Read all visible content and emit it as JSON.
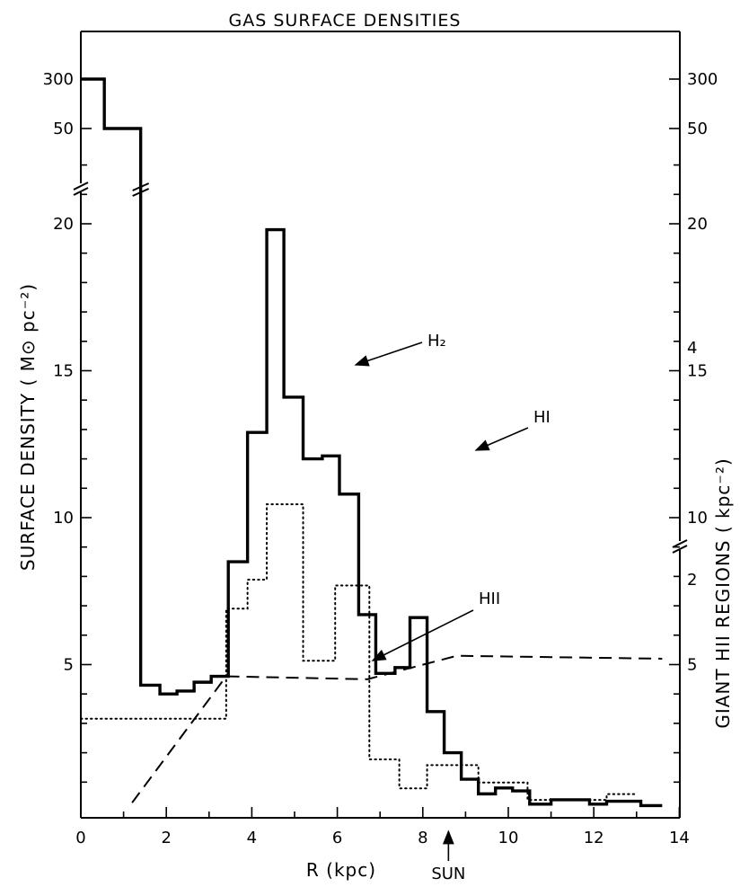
{
  "chart_data": {
    "type": "line",
    "title": "GAS SURFACE DENSITIES",
    "xlabel": "R (kpc)",
    "ylabel": "SURFACE DENSITY ( M⊙ pc⁻²)",
    "ylabel_right": "GIANT HII REGIONS ( kpc⁻²)",
    "xlim": [
      0,
      14
    ],
    "ylim": [
      0,
      23
    ],
    "y_break_upper_ticks": [
      "50",
      "300"
    ],
    "x_ticks": [
      "0",
      "2",
      "4",
      "6",
      "8",
      "10",
      "12",
      "14"
    ],
    "y_ticks": [
      "5",
      "10",
      "15",
      "20"
    ],
    "y_right_ticks": [
      "2",
      "4"
    ],
    "sun_marker": {
      "label": "SUN",
      "x": 8.6
    },
    "series": [
      {
        "name": "H₂",
        "style": "solid",
        "steps": [
          {
            "x0": 0.0,
            "x1": 0.55,
            "y": 300,
            "axis_display": "upper"
          },
          {
            "x0": 0.55,
            "x1": 1.4,
            "y": 50,
            "axis_display": "upper"
          },
          {
            "x0": 1.4,
            "x1": 1.85,
            "y": 4.3
          },
          {
            "x0": 1.85,
            "x1": 2.25,
            "y": 4.0
          },
          {
            "x0": 2.25,
            "x1": 2.65,
            "y": 4.1
          },
          {
            "x0": 2.65,
            "x1": 3.05,
            "y": 4.4
          },
          {
            "x0": 3.05,
            "x1": 3.45,
            "y": 4.6
          },
          {
            "x0": 3.45,
            "x1": 3.9,
            "y": 8.5
          },
          {
            "x0": 3.9,
            "x1": 4.35,
            "y": 12.9
          },
          {
            "x0": 4.35,
            "x1": 4.75,
            "y": 19.8
          },
          {
            "x0": 4.75,
            "x1": 5.2,
            "y": 14.1
          },
          {
            "x0": 5.2,
            "x1": 5.65,
            "y": 12.0
          },
          {
            "x0": 5.65,
            "x1": 6.05,
            "y": 12.1
          },
          {
            "x0": 6.05,
            "x1": 6.5,
            "y": 10.8
          },
          {
            "x0": 6.5,
            "x1": 6.9,
            "y": 6.7
          },
          {
            "x0": 6.9,
            "x1": 7.35,
            "y": 4.7
          },
          {
            "x0": 7.35,
            "x1": 7.7,
            "y": 4.9
          },
          {
            "x0": 7.7,
            "x1": 8.1,
            "y": 6.6
          },
          {
            "x0": 8.1,
            "x1": 8.5,
            "y": 3.4
          },
          {
            "x0": 8.5,
            "x1": 8.9,
            "y": 2.0
          },
          {
            "x0": 8.9,
            "x1": 9.3,
            "y": 1.1
          },
          {
            "x0": 9.3,
            "x1": 9.7,
            "y": 0.6
          },
          {
            "x0": 9.7,
            "x1": 10.1,
            "y": 0.8
          },
          {
            "x0": 10.1,
            "x1": 10.5,
            "y": 0.7
          },
          {
            "x0": 10.5,
            "x1": 11.0,
            "y": 0.25
          },
          {
            "x0": 11.0,
            "x1": 11.9,
            "y": 0.4
          },
          {
            "x0": 11.9,
            "x1": 12.3,
            "y": 0.25
          },
          {
            "x0": 12.3,
            "x1": 13.1,
            "y": 0.35
          },
          {
            "x0": 13.1,
            "x1": 13.6,
            "y": 0.2
          }
        ]
      },
      {
        "name": "HI",
        "style": "dashed",
        "x": [
          1.2,
          3.4,
          6.7,
          8.8,
          13.6
        ],
        "y": [
          0.3,
          4.6,
          4.5,
          5.3,
          5.2
        ]
      },
      {
        "name": "HII",
        "style": "dotted",
        "axis": "right",
        "steps": [
          {
            "x0": 0.0,
            "x1": 3.4,
            "y": 0.8
          },
          {
            "x0": 3.4,
            "x1": 3.9,
            "y": 1.75
          },
          {
            "x0": 3.9,
            "x1": 4.35,
            "y": 2.0
          },
          {
            "x0": 4.35,
            "x1": 5.2,
            "y": 2.65
          },
          {
            "x0": 5.2,
            "x1": 5.95,
            "y": 1.3
          },
          {
            "x0": 5.95,
            "x1": 6.75,
            "y": 1.95
          },
          {
            "x0": 6.75,
            "x1": 7.45,
            "y": 0.45
          },
          {
            "x0": 7.45,
            "x1": 8.1,
            "y": 0.2
          },
          {
            "x0": 8.1,
            "x1": 9.3,
            "y": 0.4
          },
          {
            "x0": 9.3,
            "x1": 10.45,
            "y": 0.25
          },
          {
            "x0": 10.45,
            "x1": 12.3,
            "y": 0.1
          },
          {
            "x0": 12.3,
            "x1": 13.0,
            "y": 0.15
          }
        ]
      }
    ],
    "annotations": [
      {
        "label": "H₂",
        "target_series": "H₂"
      },
      {
        "label": "HI",
        "target_series": "HI"
      },
      {
        "label": "HII",
        "target_series": "HII"
      }
    ]
  }
}
